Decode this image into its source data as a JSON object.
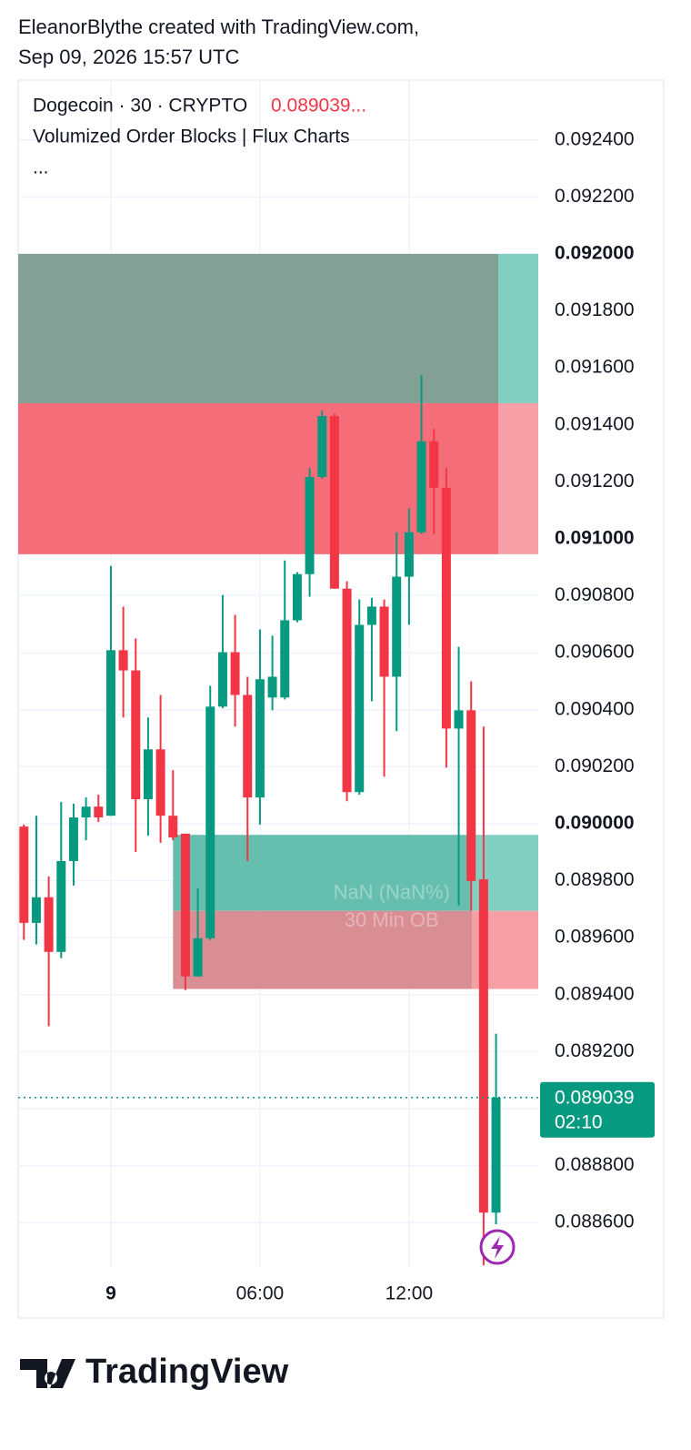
{
  "header": {
    "line1": "EleanorBlythe created with TradingView.com,",
    "line2": "Sep 09, 2026 15:57 UTC"
  },
  "footer": {
    "brand": "TradingView"
  },
  "chart_data": {
    "type": "candlestick",
    "legend": {
      "symbol": "Dogecoin · 30 · CRYPTO",
      "price": "0.089039...",
      "indicator": "Volumized Order Blocks | Flux Charts",
      "more": "..."
    },
    "up_color": "#089981",
    "down_color": "#f23645",
    "x": [
      -3.5,
      -3,
      -2.5,
      -2,
      -1.5,
      -1,
      -0.5,
      0,
      0.5,
      1,
      1.5,
      2,
      2.5,
      3,
      3.5,
      4,
      4.5,
      5,
      5.5,
      6,
      6.5,
      7,
      7.5,
      8,
      8.5,
      9,
      9.5,
      10,
      10.5,
      11,
      11.5,
      12,
      12.5,
      13,
      13.5,
      14,
      14.5,
      15,
      15.5
    ],
    "open": [
      0.08999,
      0.089652,
      0.089742,
      0.08955,
      0.089869,
      0.090022,
      0.09006,
      0.090028,
      0.090609,
      0.090538,
      0.090086,
      0.090261,
      0.090028,
      0.089965,
      0.089464,
      0.089598,
      0.090411,
      0.090602,
      0.090452,
      0.090092,
      0.090443,
      0.090443,
      0.090714,
      0.090876,
      0.091217,
      0.091431,
      0.090825,
      0.090111,
      0.090698,
      0.090762,
      0.090516,
      0.090867,
      0.091023,
      0.091342,
      0.091179,
      0.090334,
      0.090398,
      0.089805,
      0.088635
    ],
    "high": [
      0.089997,
      0.090028,
      0.089815,
      0.090076,
      0.09007,
      0.090092,
      0.090102,
      0.090905,
      0.090762,
      0.09065,
      0.090373,
      0.090452,
      0.090188,
      0.089965,
      0.089773,
      0.090484,
      0.090803,
      0.090733,
      0.090516,
      0.090682,
      0.09066,
      0.090924,
      0.090883,
      0.091249,
      0.09145,
      0.09144,
      0.090851,
      0.090787,
      0.090793,
      0.090787,
      0.091023,
      0.091106,
      0.091574,
      0.091386,
      0.091249,
      0.090621,
      0.0905,
      0.090341,
      0.089263
    ],
    "low": [
      0.089592,
      0.089576,
      0.089289,
      0.089528,
      0.089783,
      0.089942,
      0.090006,
      0.090028,
      0.090373,
      0.089901,
      0.089958,
      0.089933,
      0.089942,
      0.089416,
      0.089464,
      0.089592,
      0.090405,
      0.090341,
      0.089869,
      0.089997,
      0.090398,
      0.090436,
      0.090707,
      0.090797,
      0.091211,
      0.090825,
      0.090079,
      0.090102,
      0.09043,
      0.090165,
      0.090325,
      0.090698,
      0.091017,
      0.091017,
      0.090197,
      0.089713,
      0.089694,
      0.08845,
      0.088594
    ],
    "close": [
      0.089652,
      0.089742,
      0.08955,
      0.089869,
      0.090022,
      0.09006,
      0.090022,
      0.090609,
      0.090538,
      0.090086,
      0.090261,
      0.090028,
      0.089952,
      0.089464,
      0.089598,
      0.090411,
      0.090602,
      0.090452,
      0.090092,
      0.090507,
      0.090516,
      0.090714,
      0.090876,
      0.091217,
      0.091431,
      0.090825,
      0.090111,
      0.090698,
      0.090762,
      0.090516,
      0.090867,
      0.091023,
      0.091342,
      0.091179,
      0.090334,
      0.090398,
      0.089799,
      0.088635,
      0.089039
    ],
    "xlim": [
      -3.73,
      17.2
    ],
    "xticks": [
      {
        "value": 0,
        "label": "9"
      },
      {
        "value": 6,
        "label": "06:00"
      },
      {
        "value": 12,
        "label": "12:00"
      }
    ],
    "ylim": [
      0.088444,
      0.09261
    ],
    "yticks": [
      {
        "value": 0.0924,
        "label": "0.092400"
      },
      {
        "value": 0.0922,
        "label": "0.092200"
      },
      {
        "value": 0.092,
        "label": "0.092000"
      },
      {
        "value": 0.0918,
        "label": "0.091800"
      },
      {
        "value": 0.0916,
        "label": "0.091600"
      },
      {
        "value": 0.0914,
        "label": "0.091400"
      },
      {
        "value": 0.0912,
        "label": "0.091200"
      },
      {
        "value": 0.091,
        "label": "0.091000"
      },
      {
        "value": 0.0908,
        "label": "0.090800"
      },
      {
        "value": 0.0906,
        "label": "0.090600"
      },
      {
        "value": 0.0904,
        "label": "0.090400"
      },
      {
        "value": 0.0902,
        "label": "0.090200"
      },
      {
        "value": 0.09,
        "label": "0.090000"
      },
      {
        "value": 0.0898,
        "label": "0.089800"
      },
      {
        "value": 0.0896,
        "label": "0.089600"
      },
      {
        "value": 0.0894,
        "label": "0.089400"
      },
      {
        "value": 0.0892,
        "label": "0.089200"
      },
      {
        "value": 0.089,
        "label": "0.089000"
      },
      {
        "value": 0.0888,
        "label": "0.088800"
      },
      {
        "value": 0.0886,
        "label": "0.088600"
      }
    ],
    "zones": [
      {
        "top": 0.092,
        "bottom": 0.091476,
        "from": -3.73,
        "to": 15.59,
        "color": "#82a096"
      },
      {
        "top": 0.092,
        "bottom": 0.091476,
        "from": 15.59,
        "to": 17.2,
        "color": "#80cfc0"
      },
      {
        "top": 0.091476,
        "bottom": 0.090946,
        "from": -3.73,
        "to": 15.59,
        "color": "#f56d79"
      },
      {
        "top": 0.091476,
        "bottom": 0.090946,
        "from": 15.59,
        "to": 17.2,
        "color": "#f7a0a7"
      },
      {
        "top": 0.089961,
        "bottom": 0.089694,
        "from": 2.5,
        "to": 14.53,
        "color": "#66bfae"
      },
      {
        "top": 0.089961,
        "bottom": 0.089694,
        "from": 14.53,
        "to": 17.2,
        "color": "#82d0c1"
      },
      {
        "top": 0.089694,
        "bottom": 0.08942,
        "from": 2.5,
        "to": 14.53,
        "color": "#d98e93"
      },
      {
        "top": 0.089694,
        "bottom": 0.08942,
        "from": 14.53,
        "to": 17.2,
        "color": "#f6a0a6"
      }
    ],
    "annotations": [
      {
        "text": "NaN (NaN%)",
        "x": 11.3,
        "y": 0.089755
      },
      {
        "text": "30 Min OB",
        "x": 11.3,
        "y": 0.089657
      }
    ],
    "last_price": {
      "value": 0.089039,
      "countdown": "02:10",
      "color": "#089981"
    }
  }
}
